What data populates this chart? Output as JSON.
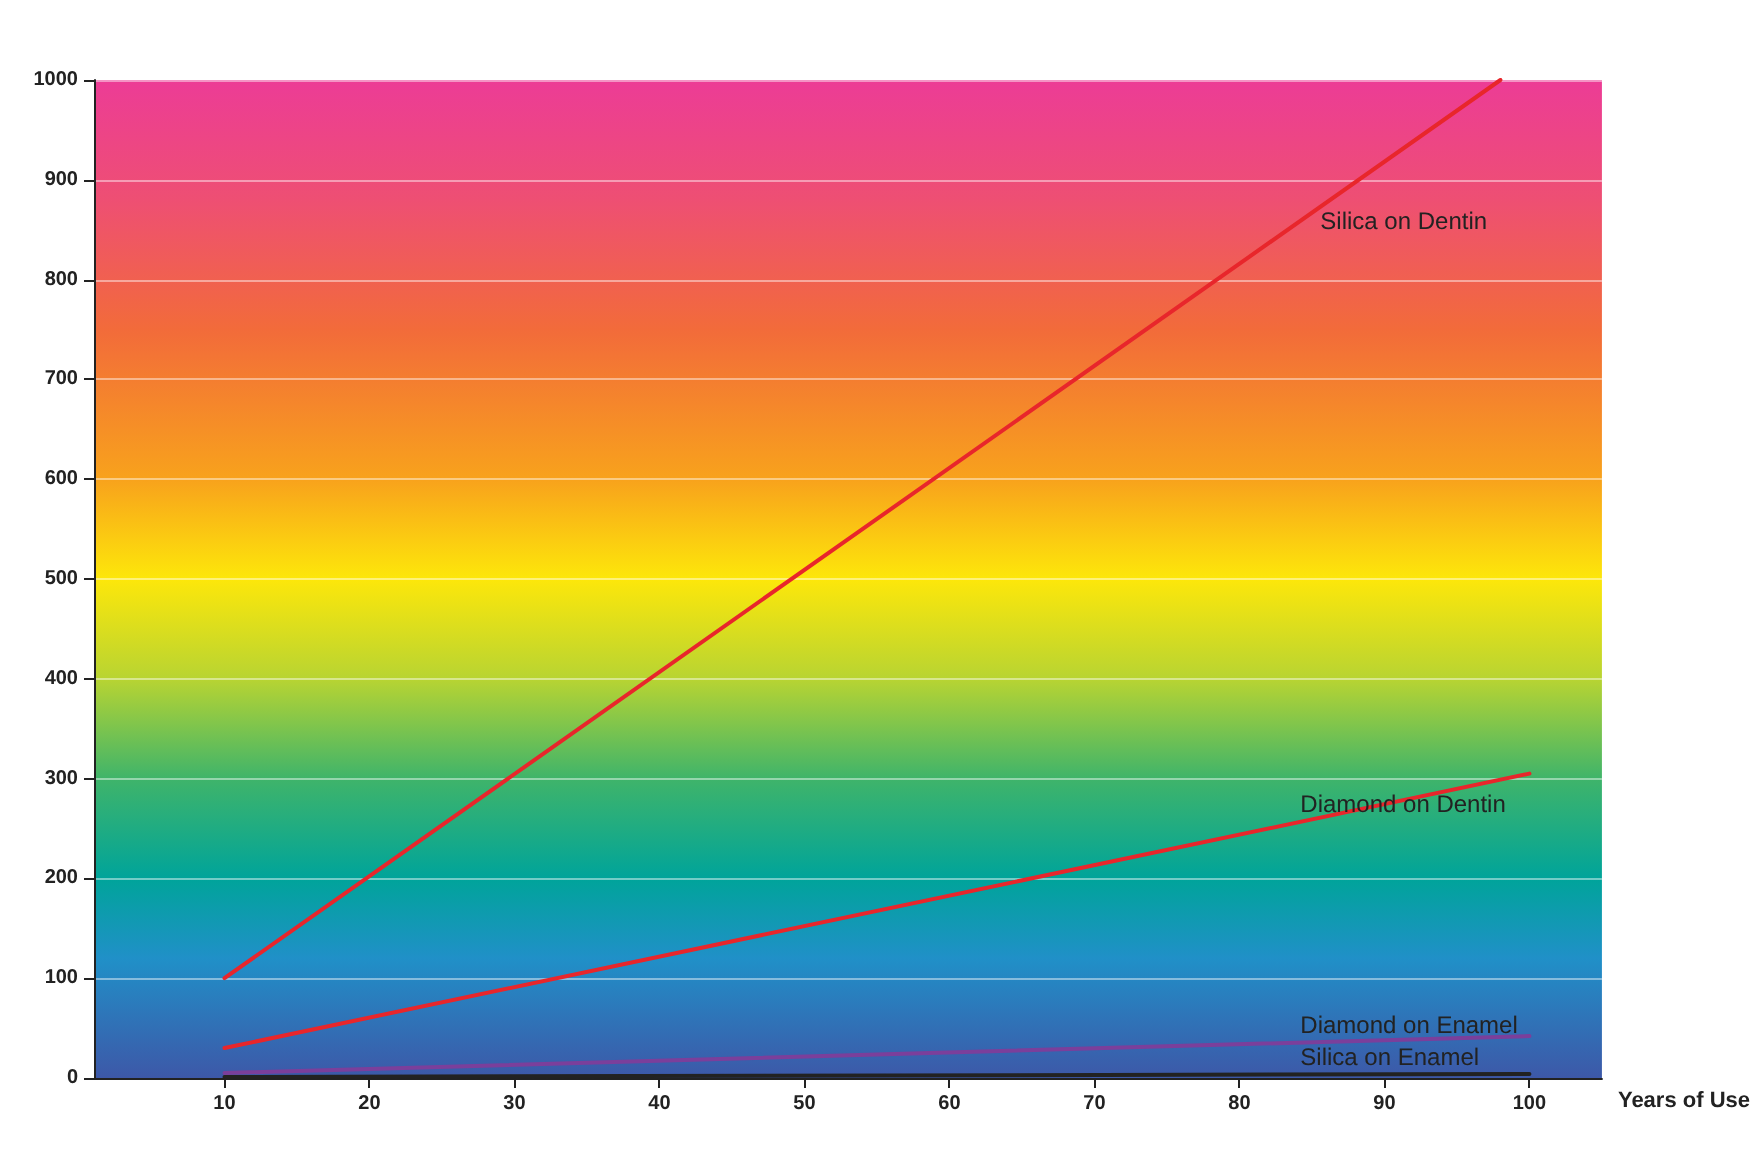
{
  "chart_data": {
    "type": "line",
    "xlabel": "Years of Use",
    "xlim": [
      1,
      105
    ],
    "xticks": [
      10,
      20,
      30,
      40,
      50,
      60,
      70,
      80,
      90,
      100
    ],
    "ylim": [
      0,
      1000
    ],
    "yticks": [
      0,
      100,
      200,
      300,
      400,
      500,
      600,
      700,
      800,
      900,
      1000
    ],
    "grid": "y",
    "marker": "none",
    "line_style": "solid",
    "legend": false,
    "series": [
      {
        "name": "Silica on Dentin",
        "color": "#e8262b",
        "x": [
          10,
          98
        ],
        "values": [
          100,
          1000
        ]
      },
      {
        "name": "Diamond on Dentin",
        "color": "#e8262b",
        "x": [
          10,
          100
        ],
        "values": [
          30,
          305
        ]
      },
      {
        "name": "Diamond on Enamel",
        "color": "#7b3f9b",
        "x": [
          10,
          100
        ],
        "values": [
          5,
          42
        ]
      },
      {
        "name": "Silica on Enamel",
        "color": "#222222",
        "x": [
          10,
          100
        ],
        "values": [
          1,
          4
        ]
      }
    ]
  }
}
